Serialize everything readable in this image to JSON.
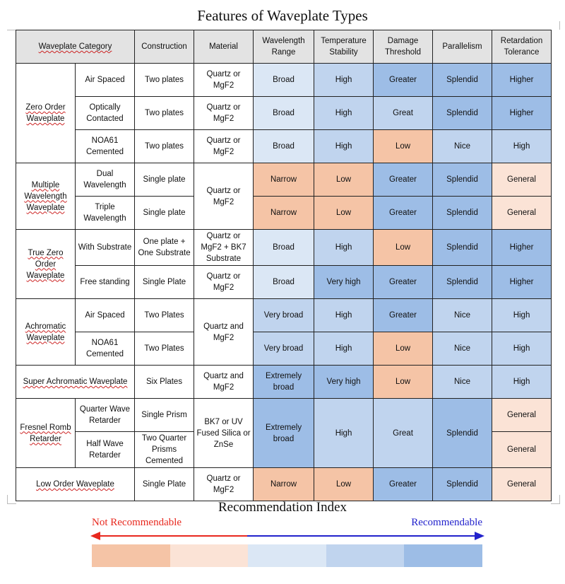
{
  "title": "Features of Waveplate Types",
  "headers": {
    "category": "Waveplate Category",
    "construction": "Construction",
    "material": "Material",
    "wavelength": "Wavelength Range",
    "temperature": "Temperature Stability",
    "damage": "Damage Threshold",
    "parallelism": "Parallelism",
    "retardation": "Retardation Tolerance"
  },
  "groups": {
    "zero_order": "Zero Order Waveplate",
    "multiple": "Multiple Wavelength Waveplate",
    "true_zero": "True Zero Order Waveplate",
    "achromatic": "Achromatic Waveplate",
    "super_achromatic": "Super Achromatic Waveplate",
    "fresnel": "Fresnel Romb Retarder",
    "low_order": "Low Order Waveplate"
  },
  "rows": {
    "zo_air": {
      "sub": "Air Spaced",
      "construction": "Two plates",
      "material": "Quartz or MgF2",
      "wavelength": "Broad",
      "temperature": "High",
      "damage": "Greater",
      "parallelism": "Splendid",
      "retardation": "Higher"
    },
    "zo_opt": {
      "sub": "Optically Contacted",
      "construction": "Two plates",
      "material": "Quartz or MgF2",
      "wavelength": "Broad",
      "temperature": "High",
      "damage": "Great",
      "parallelism": "Splendid",
      "retardation": "Higher"
    },
    "zo_noa": {
      "sub": "NOA61 Cemented",
      "construction": "Two plates",
      "material": "Quartz or MgF2",
      "wavelength": "Broad",
      "temperature": "High",
      "damage": "Low",
      "parallelism": "Nice",
      "retardation": "High"
    },
    "mw_dual": {
      "sub": "Dual Wavelength",
      "construction": "Single plate",
      "material": "Quartz or MgF2",
      "wavelength": "Narrow",
      "temperature": "Low",
      "damage": "Greater",
      "parallelism": "Splendid",
      "retardation": "General"
    },
    "mw_triple": {
      "sub": "Triple Wavelength",
      "construction": "Single plate",
      "wavelength": "Narrow",
      "temperature": "Low",
      "damage": "Greater",
      "parallelism": "Splendid",
      "retardation": "General"
    },
    "tz_sub": {
      "sub": "With Substrate",
      "construction": "One plate + One Substrate",
      "material": "Quartz or MgF2 + BK7 Substrate",
      "wavelength": "Broad",
      "temperature": "High",
      "damage": "Low",
      "parallelism": "Splendid",
      "retardation": "Higher"
    },
    "tz_free": {
      "sub": "Free standing",
      "construction": "Single Plate",
      "material": "Quartz or MgF2",
      "wavelength": "Broad",
      "temperature": "Very high",
      "damage": "Greater",
      "parallelism": "Splendid",
      "retardation": "Higher"
    },
    "ac_air": {
      "sub": "Air Spaced",
      "construction": "Two Plates",
      "material": "Quartz and MgF2",
      "wavelength": "Very broad",
      "temperature": "High",
      "damage": "Greater",
      "parallelism": "Nice",
      "retardation": "High"
    },
    "ac_noa": {
      "sub": "NOA61 Cemented",
      "construction": "Two Plates",
      "wavelength": "Very broad",
      "temperature": "High",
      "damage": "Low",
      "parallelism": "Nice",
      "retardation": "High"
    },
    "super": {
      "construction": "Six Plates",
      "material": "Quartz and MgF2",
      "wavelength": "Extremely broad",
      "temperature": "Very high",
      "damage": "Low",
      "parallelism": "Nice",
      "retardation": "High"
    },
    "fr_quarter": {
      "sub": "Quarter Wave Retarder",
      "construction": "Single Prism",
      "material": "BK7 or UV Fused Silica or ZnSe",
      "wavelength": "Extremely broad",
      "temperature": "High",
      "damage": "Great",
      "parallelism": "Splendid",
      "retardation": "General"
    },
    "fr_half": {
      "sub": "Half Wave Retarder",
      "construction": "Two Quarter Prisms Cemented",
      "retardation": "General"
    },
    "low": {
      "construction": "Single Plate",
      "material": "Quartz or MgF2",
      "wavelength": "Narrow",
      "temperature": "Low",
      "damage": "Greater",
      "parallelism": "Splendid",
      "retardation": "General"
    }
  },
  "legend": {
    "title": "Recommendation Index",
    "left_label": "Not Recommendable",
    "right_label": "Recommendable",
    "colors": [
      "#f5c4a6",
      "#fbe3d6",
      "#dbe7f5",
      "#c0d4ee",
      "#9dbde6"
    ],
    "arrow_left_color": "#e8281e",
    "arrow_right_color": "#2222cc"
  }
}
